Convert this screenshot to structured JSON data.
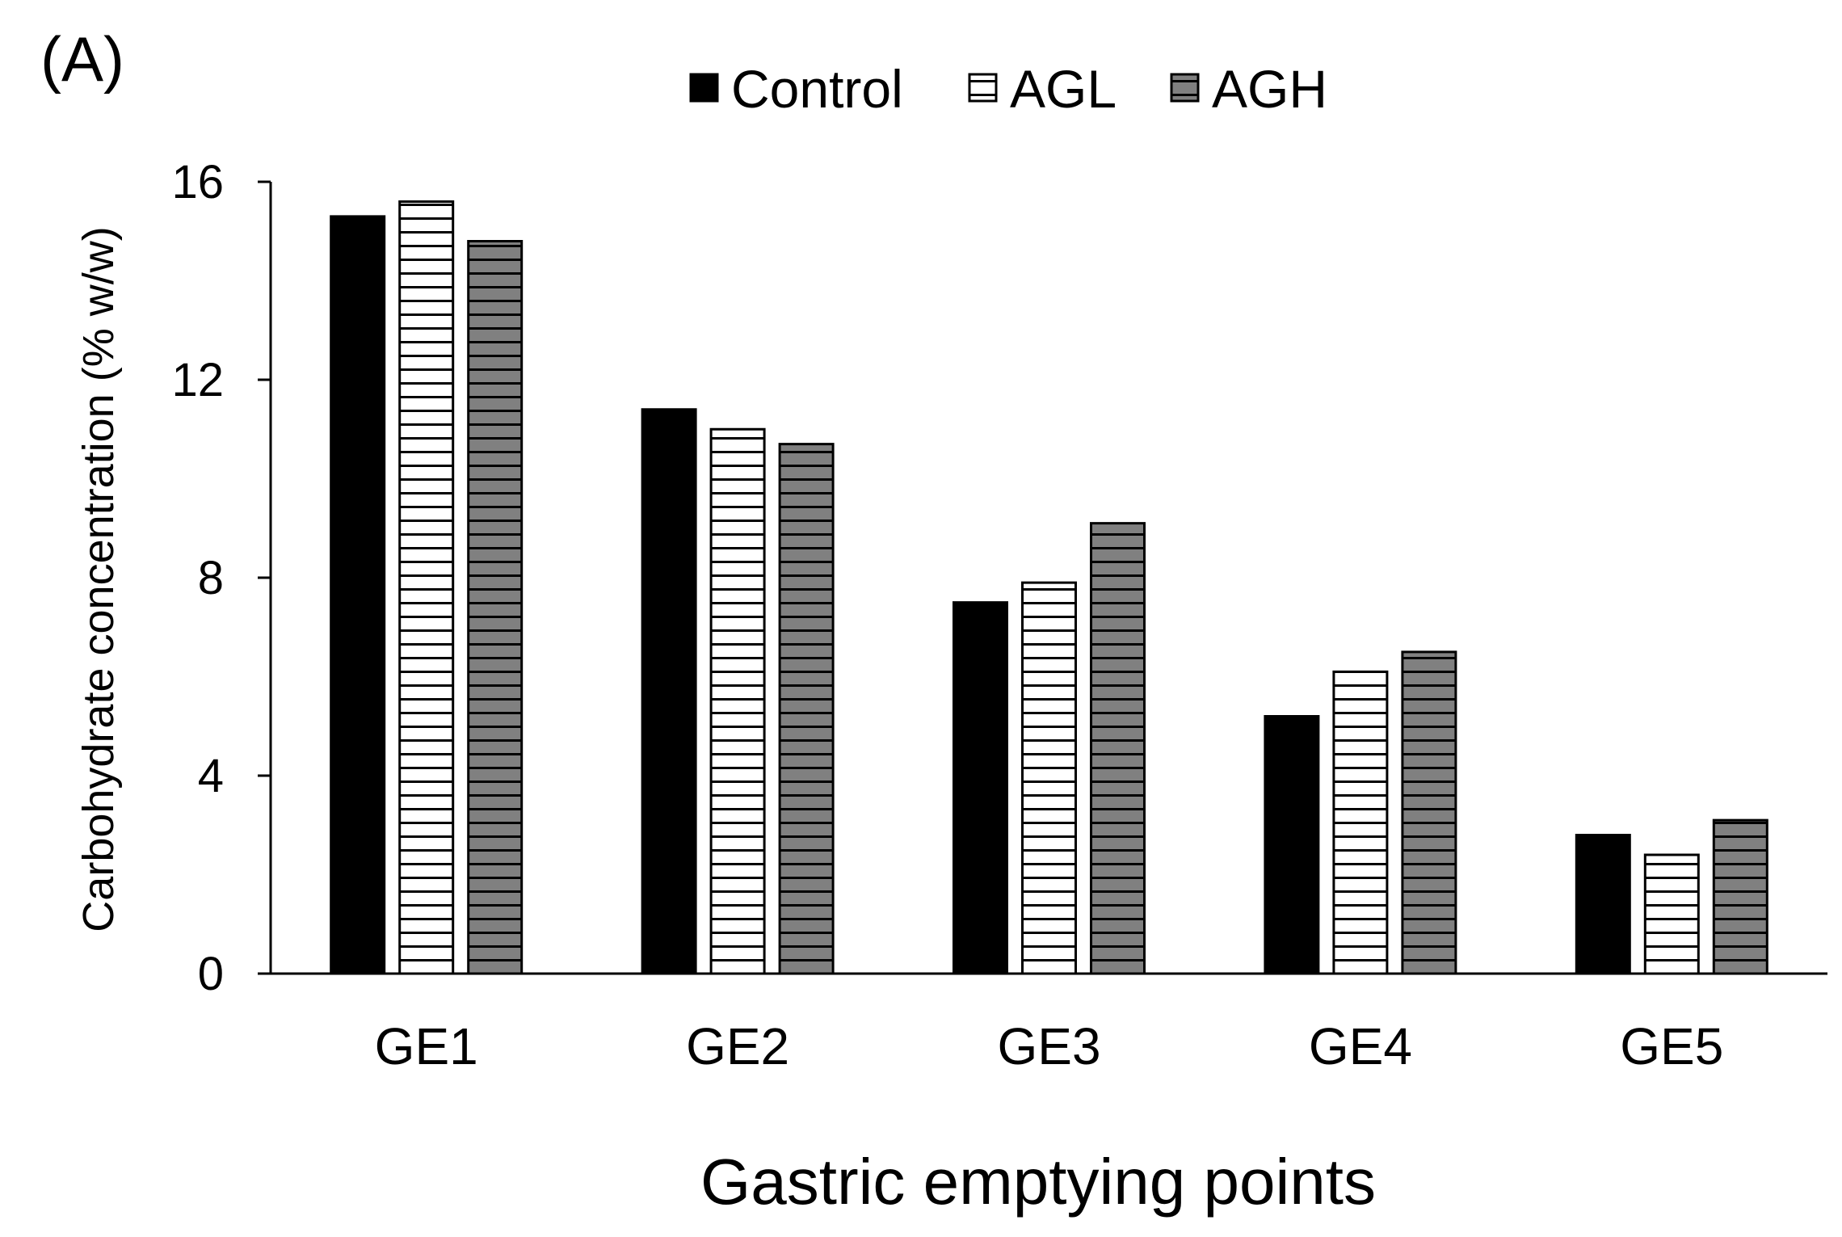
{
  "panel_label": "(A)",
  "chart_data": {
    "type": "bar",
    "title": "",
    "xlabel": "Gastric emptying points",
    "ylabel": "Carbohydrate concentration (% w/w)",
    "categories": [
      "GE1",
      "GE2",
      "GE3",
      "GE4",
      "GE5"
    ],
    "ylim": [
      0,
      16
    ],
    "yticks": [
      0,
      4,
      8,
      12,
      16
    ],
    "legend_position": "top",
    "grid": false,
    "series": [
      {
        "name": "Control",
        "pattern": "solid",
        "color": "#000000",
        "values": [
          15.3,
          11.4,
          7.5,
          5.2,
          2.8
        ]
      },
      {
        "name": "AGL",
        "pattern": "white-horizontal-stripes",
        "color": "#ffffff",
        "values": [
          15.6,
          11.0,
          7.9,
          6.1,
          2.4
        ]
      },
      {
        "name": "AGH",
        "pattern": "gray-horizontal-stripes",
        "color": "#808080",
        "values": [
          14.8,
          10.7,
          9.1,
          6.5,
          3.1
        ]
      }
    ]
  }
}
